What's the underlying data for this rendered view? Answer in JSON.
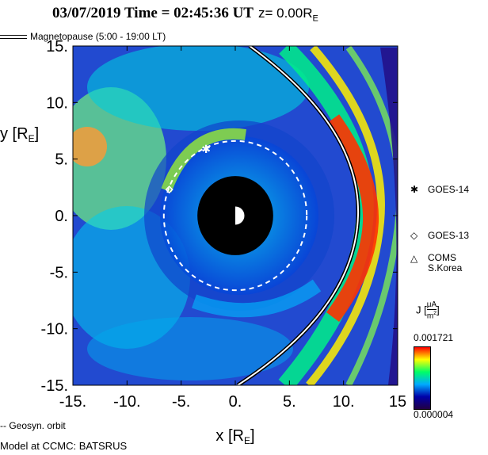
{
  "title": {
    "datetime": "03/07/2019 Time = 02:45:36 UT",
    "zpart": "z= 0.00R",
    "zsub": "E"
  },
  "legend": {
    "magnetopause": "Magnetopause (5:00 - 19:00 LT)",
    "geosync": "-- Geosyn. orbit"
  },
  "satellites": [
    {
      "symbol": "✱",
      "name": "GOES-14",
      "name2": ""
    },
    {
      "symbol": "◇",
      "name": "GOES-13",
      "name2": ""
    },
    {
      "symbol": "△",
      "name": "COMS",
      "name2": "S.Korea"
    }
  ],
  "colorbar": {
    "label": "J",
    "unit_num": "μA",
    "unit_den": "m",
    "unit_den_sup": "2",
    "max": "0.001721",
    "min": "0.000004"
  },
  "credit": "Model at CCMC: BATSRUS",
  "chart_data": {
    "type": "heatmap",
    "title": "03/07/2019 Time = 02:45:36 UT z= 0.00RE",
    "xlabel": "x [RE]",
    "ylabel": "y [RE]",
    "xlim": [
      -15,
      15
    ],
    "ylim": [
      -15,
      15
    ],
    "xticks": [
      "-15.",
      "-10.",
      "-5.",
      "0.",
      "5.",
      "10.",
      "15"
    ],
    "yticks": [
      "15.",
      "10.",
      "5.",
      "0.",
      "-5.",
      "-10.",
      "-15."
    ],
    "xtick_values": [
      -15,
      -10,
      -5,
      0,
      5,
      10,
      15
    ],
    "ytick_values": [
      15,
      10,
      5,
      0,
      -5,
      -10,
      -15
    ],
    "colorscale_range": [
      4e-06,
      0.001721
    ],
    "inner_boundary_radius": 3.5,
    "geosync_radius": 6.6,
    "satellites": [
      {
        "name": "GOES-14",
        "x": -2.7,
        "y": 5.9
      },
      {
        "name": "GOES-13",
        "x": -6.1,
        "y": 2.3
      }
    ]
  }
}
